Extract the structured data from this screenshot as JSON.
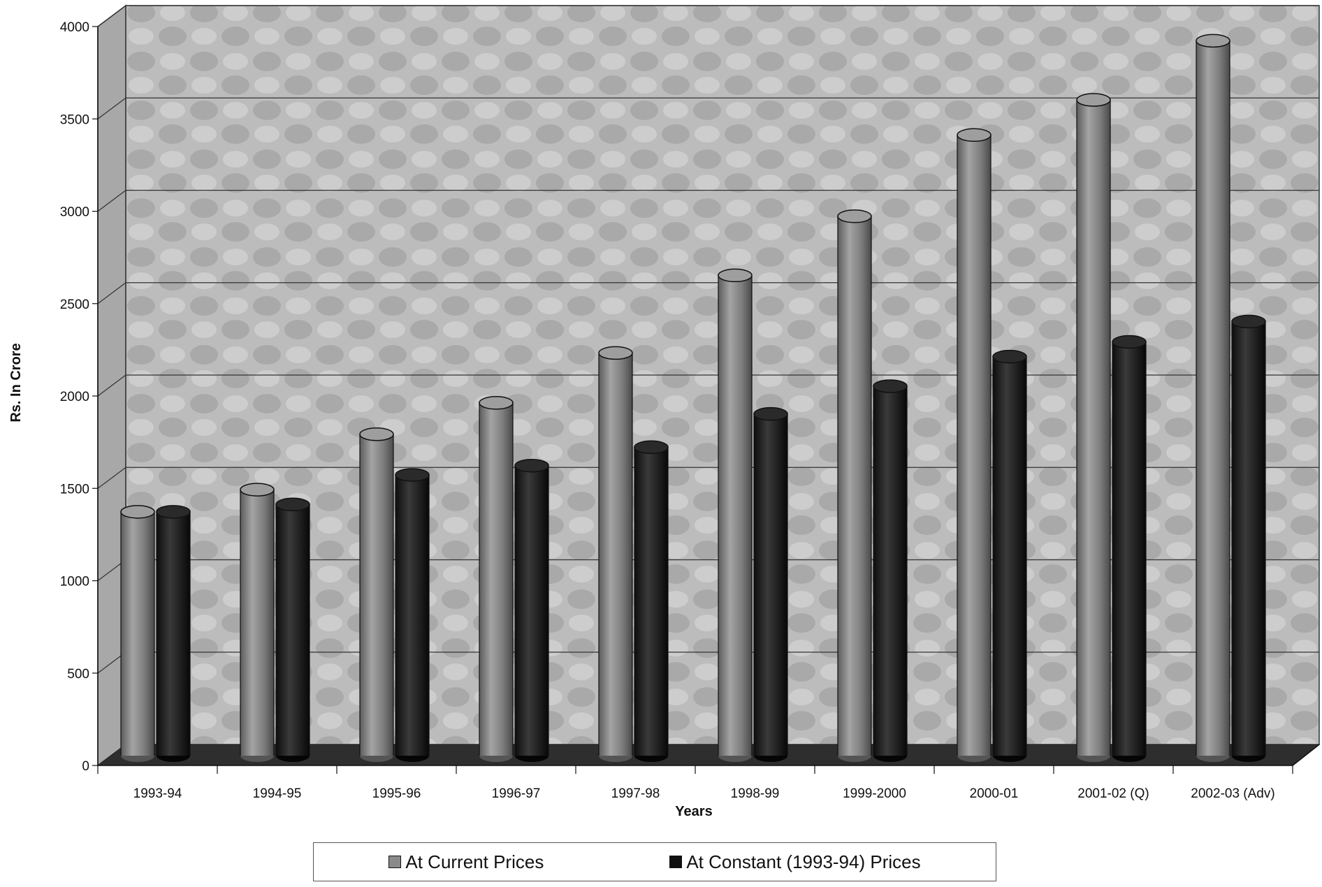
{
  "chart_data": {
    "type": "bar",
    "xlabel": "Years",
    "ylabel": "Rs. In Crore",
    "ylim": [
      0,
      4000
    ],
    "yticks": [
      0,
      500,
      1000,
      1500,
      2000,
      2500,
      3000,
      3500,
      4000
    ],
    "categories": [
      "1993-94",
      "1994-95",
      "1995-96",
      "1996-97",
      "1997-98",
      "1998-99",
      "1999-2000",
      "2000-01",
      "2001-02 (Q)",
      "2002-03 (Adv)"
    ],
    "series": [
      {
        "name": "At Current Prices",
        "color": "#8a8a8a",
        "values": [
          1320,
          1440,
          1740,
          1910,
          2180,
          2600,
          2920,
          3360,
          3550,
          3870
        ]
      },
      {
        "name": "At Constant (1993-94) Prices",
        "color": "#1a1a1a",
        "values": [
          1320,
          1360,
          1520,
          1570,
          1670,
          1850,
          2000,
          2160,
          2240,
          2350
        ]
      }
    ],
    "grid": true,
    "legend_position": "bottom"
  }
}
